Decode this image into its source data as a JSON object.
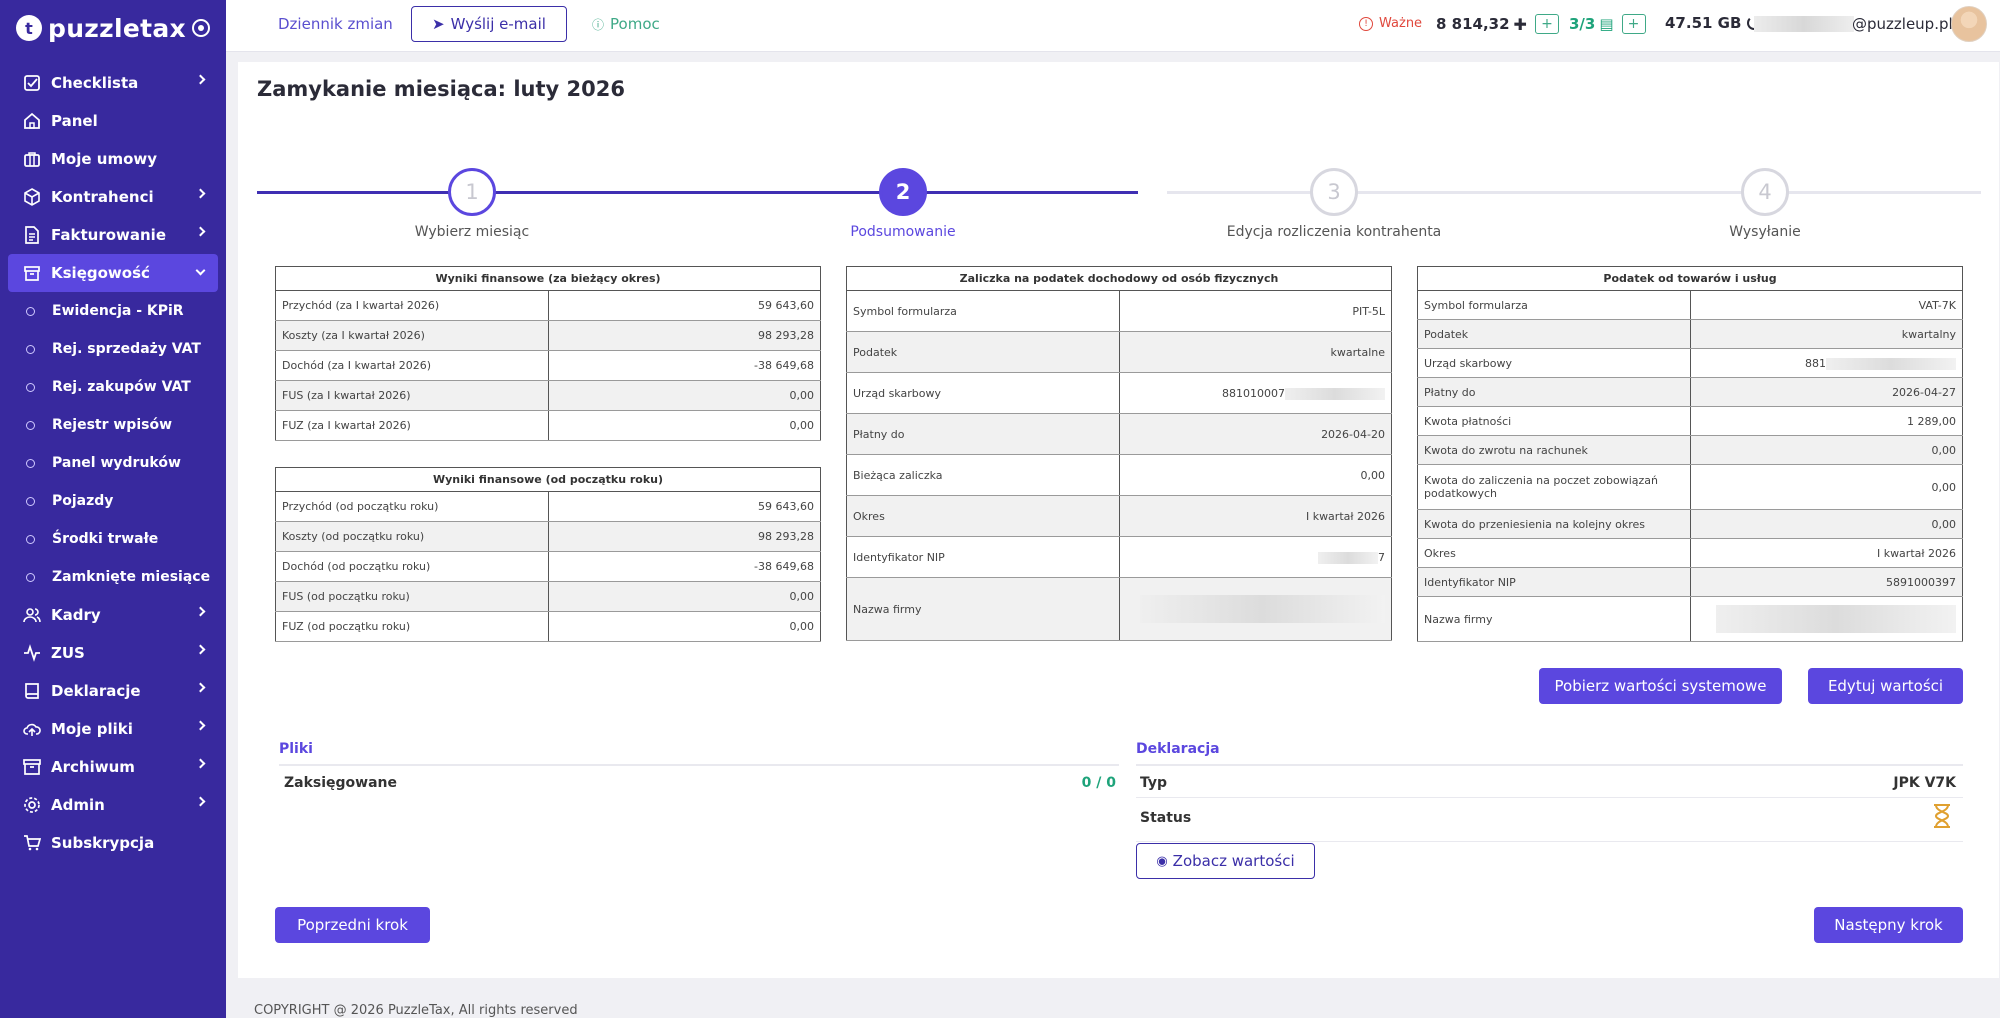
{
  "brand": {
    "name": "puzzletax"
  },
  "sidebar": {
    "items": [
      {
        "label": "Checklista",
        "icon": "checklist-icon",
        "chevron": true
      },
      {
        "label": "Panel",
        "icon": "home-icon",
        "chevron": false
      },
      {
        "label": "Moje umowy",
        "icon": "briefcase-icon",
        "chevron": false
      },
      {
        "label": "Kontrahenci",
        "icon": "box-icon",
        "chevron": true
      },
      {
        "label": "Fakturowanie",
        "icon": "document-icon",
        "chevron": true
      },
      {
        "label": "Księgowość",
        "icon": "archive-icon",
        "chevron": true,
        "active": true
      }
    ],
    "sub_items": [
      "Ewidencja - KPiR",
      "Rej. sprzedaży VAT",
      "Rej. zakupów VAT",
      "Rejestr wpisów",
      "Panel wydruków",
      "Pojazdy",
      "Środki trwałe",
      "Zamknięte miesiące"
    ],
    "items_after": [
      {
        "label": "Kadry",
        "icon": "users-icon",
        "chevron": true
      },
      {
        "label": "ZUS",
        "icon": "activity-icon",
        "chevron": true
      },
      {
        "label": "Deklaracje",
        "icon": "book-icon",
        "chevron": true
      },
      {
        "label": "Moje pliki",
        "icon": "cloud-upload-icon",
        "chevron": true
      },
      {
        "label": "Archiwum",
        "icon": "archive-box-icon",
        "chevron": true
      },
      {
        "label": "Admin",
        "icon": "gear-icon",
        "chevron": true
      },
      {
        "label": "Subskrypcja",
        "icon": "cart-icon",
        "chevron": false
      }
    ]
  },
  "topbar": {
    "changelog": "Dziennik zmian",
    "send_email": "Wyślij e-mail",
    "help": "Pomoc",
    "important": "Ważne",
    "points": "8 814,32",
    "docs": "3/3",
    "storage": "47.51 GB",
    "email_suffix": "@puzzleup.pl"
  },
  "page": {
    "title": "Zamykanie miesiąca: luty 2026"
  },
  "stepper": {
    "steps": [
      {
        "num": "1",
        "label": "Wybierz miesiąc",
        "state": "done"
      },
      {
        "num": "2",
        "label": "Podsumowanie",
        "state": "current"
      },
      {
        "num": "3",
        "label": "Edycja rozliczenia kontrahenta",
        "state": "todo"
      },
      {
        "num": "4",
        "label": "Wysyłanie",
        "state": "todo"
      }
    ]
  },
  "fin_current": {
    "title": "Wyniki finansowe (za bieżący okres)",
    "rows": [
      {
        "label": "Przychód (za I kwartał 2026)",
        "value": "59 643,60"
      },
      {
        "label": "Koszty (za I kwartał 2026)",
        "value": "98 293,28"
      },
      {
        "label": "Dochód (za I kwartał 2026)",
        "value": "-38 649,68"
      },
      {
        "label": "FUS (za I kwartał 2026)",
        "value": "0,00"
      },
      {
        "label": "FUZ (za I kwartał 2026)",
        "value": "0,00"
      }
    ]
  },
  "fin_year": {
    "title": "Wyniki finansowe (od początku roku)",
    "rows": [
      {
        "label": "Przychód (od początku roku)",
        "value": "59 643,60"
      },
      {
        "label": "Koszty (od początku roku)",
        "value": "98 293,28"
      },
      {
        "label": "Dochód (od początku roku)",
        "value": "-38 649,68"
      },
      {
        "label": "FUS (od początku roku)",
        "value": "0,00"
      },
      {
        "label": "FUZ (od początku roku)",
        "value": "0,00"
      }
    ]
  },
  "pit": {
    "title": "Zaliczka na podatek dochodowy od osób fizycznych",
    "rows": [
      {
        "label": "Symbol formularza",
        "value": "PIT-5L"
      },
      {
        "label": "Podatek",
        "value": "kwartalne"
      },
      {
        "label": "Urząd skarbowy",
        "value": "881010007"
      },
      {
        "label": "Płatny do",
        "value": "2026-04-20"
      },
      {
        "label": "Bieżąca zaliczka",
        "value": "0,00"
      },
      {
        "label": "Okres",
        "value": "I kwartał 2026"
      },
      {
        "label": "Identyfikator NIP",
        "value": "7"
      },
      {
        "label": "Nazwa firmy",
        "value": ""
      }
    ]
  },
  "vat": {
    "title": "Podatek od towarów i usług",
    "rows": [
      {
        "label": "Symbol formularza",
        "value": "VAT-7K"
      },
      {
        "label": "Podatek",
        "value": "kwartalny"
      },
      {
        "label": "Urząd skarbowy",
        "value": "881"
      },
      {
        "label": "Płatny do",
        "value": "2026-04-27"
      },
      {
        "label": "Kwota płatności",
        "value": "1 289,00"
      },
      {
        "label": "Kwota do zwrotu na rachunek",
        "value": "0,00"
      },
      {
        "label": "Kwota do zaliczenia na poczet zobowiązań podatkowych",
        "value": "0,00"
      },
      {
        "label": "Kwota do przeniesienia na kolejny okres",
        "value": "0,00"
      },
      {
        "label": "Okres",
        "value": "I kwartał 2026"
      },
      {
        "label": "Identyfikator NIP",
        "value": "5891000397"
      },
      {
        "label": "Nazwa firmy",
        "value": ""
      }
    ]
  },
  "actions": {
    "fetch_system": "Pobierz wartości systemowe",
    "edit_values": "Edytuj wartości",
    "prev_step": "Poprzedni krok",
    "next_step": "Następny krok"
  },
  "files": {
    "heading": "Pliki",
    "booked_label": "Zaksięgowane",
    "booked_value": "0 / 0"
  },
  "declaration": {
    "heading": "Deklaracja",
    "type_label": "Typ",
    "type_value": "JPK V7K",
    "status_label": "Status",
    "status_icon": "hourglass-icon",
    "view_values": "Zobacz wartości"
  },
  "footer": {
    "copyright": "COPYRIGHT @ 2026 PuzzleTax, All rights reserved"
  },
  "colors": {
    "sidebar": "#38299e",
    "accent": "#5b47df",
    "green": "#1ea37a",
    "warn": "#e0483d"
  }
}
